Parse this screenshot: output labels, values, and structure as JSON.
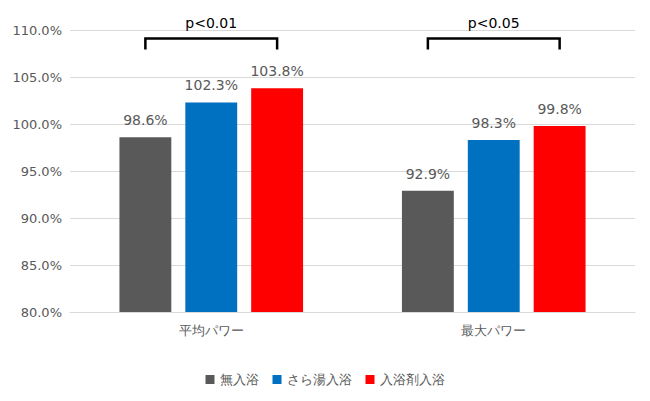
{
  "chart_data": {
    "type": "bar",
    "categories": [
      "平均パワー",
      "最大パワー"
    ],
    "series": [
      {
        "name": "無入浴",
        "color": "#595959",
        "values": [
          98.6,
          92.9
        ],
        "value_labels": [
          "98.6%",
          "92.9%"
        ]
      },
      {
        "name": "さら湯入浴",
        "color": "#0070C0",
        "values": [
          102.3,
          98.3
        ],
        "value_labels": [
          "102.3%",
          "98.3%"
        ]
      },
      {
        "name": "入浴剤入浴",
        "color": "#FF0000",
        "values": [
          103.8,
          99.8
        ],
        "value_labels": [
          "103.8%",
          "99.8%"
        ]
      }
    ],
    "ylim": [
      80,
      110
    ],
    "yticks": [
      {
        "value": 80,
        "label": "80.0%"
      },
      {
        "value": 85,
        "label": "85.0%"
      },
      {
        "value": 90,
        "label": "90.0%"
      },
      {
        "value": 95,
        "label": "95.0%"
      },
      {
        "value": 100,
        "label": "100.0%"
      },
      {
        "value": 105,
        "label": "105.0%"
      },
      {
        "value": 110,
        "label": "110.0%"
      }
    ],
    "grid": true,
    "legend": "bottom",
    "data_labels": true,
    "annotations": [
      {
        "text": "p<0.01",
        "category": "平均パワー",
        "y": 109.1
      },
      {
        "text": "p<0.05",
        "category": "最大パワー",
        "y": 109.1
      }
    ]
  }
}
